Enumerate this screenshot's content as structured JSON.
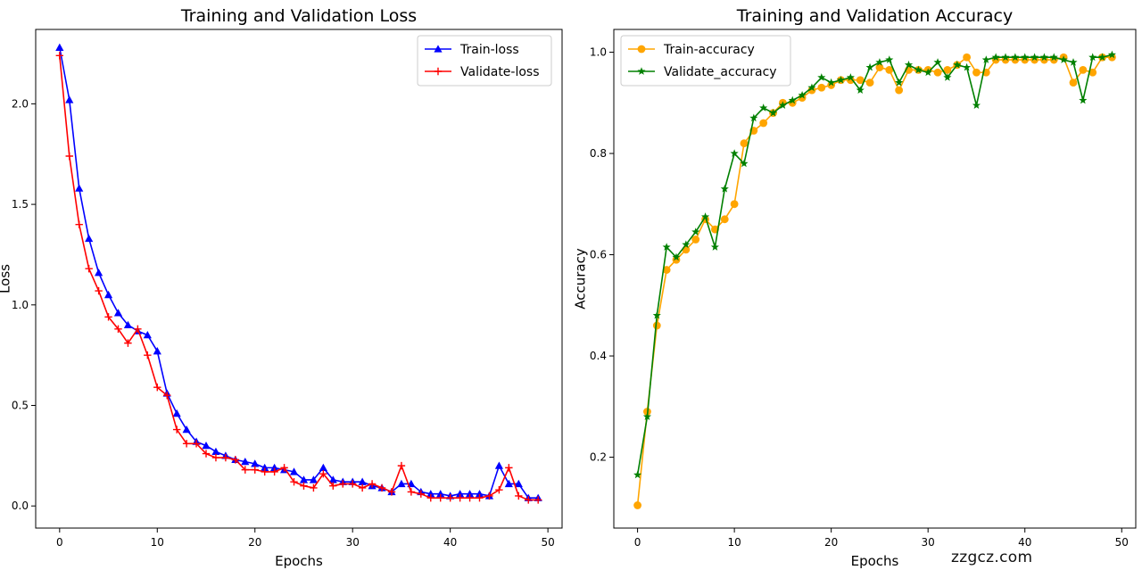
{
  "watermark": "zzgcz.com",
  "chart_data": [
    {
      "type": "line",
      "title": "Training and Validation Loss",
      "xlabel": "Epochs",
      "ylabel": "Loss",
      "xlim": [
        -2.45,
        51.45
      ],
      "ylim": [
        -0.11,
        2.37
      ],
      "xticks": [
        0,
        10,
        20,
        30,
        40,
        50
      ],
      "yticks": [
        0.0,
        0.5,
        1.0,
        1.5,
        2.0
      ],
      "ytick_labels": [
        "0.0",
        "0.5",
        "1.0",
        "1.5",
        "2.0"
      ],
      "legend_position": "upper-right",
      "grid": false,
      "series": [
        {
          "name": "Train-loss",
          "color": "#0000ff",
          "marker": "triangle",
          "x": [
            0,
            1,
            2,
            3,
            4,
            5,
            6,
            7,
            8,
            9,
            10,
            11,
            12,
            13,
            14,
            15,
            16,
            17,
            18,
            19,
            20,
            21,
            22,
            23,
            24,
            25,
            26,
            27,
            28,
            29,
            30,
            31,
            32,
            33,
            34,
            35,
            36,
            37,
            38,
            39,
            40,
            41,
            42,
            43,
            44,
            45,
            46,
            47,
            48,
            49
          ],
          "values": [
            2.28,
            2.02,
            1.58,
            1.33,
            1.16,
            1.05,
            0.96,
            0.9,
            0.87,
            0.85,
            0.77,
            0.56,
            0.46,
            0.38,
            0.32,
            0.3,
            0.27,
            0.25,
            0.23,
            0.22,
            0.21,
            0.19,
            0.19,
            0.18,
            0.17,
            0.13,
            0.13,
            0.19,
            0.13,
            0.12,
            0.12,
            0.12,
            0.1,
            0.09,
            0.07,
            0.11,
            0.11,
            0.07,
            0.06,
            0.06,
            0.05,
            0.06,
            0.06,
            0.06,
            0.05,
            0.2,
            0.11,
            0.11,
            0.04,
            0.04
          ]
        },
        {
          "name": "Validate-loss",
          "color": "#ff0000",
          "marker": "plus",
          "x": [
            0,
            1,
            2,
            3,
            4,
            5,
            6,
            7,
            8,
            9,
            10,
            11,
            12,
            13,
            14,
            15,
            16,
            17,
            18,
            19,
            20,
            21,
            22,
            23,
            24,
            25,
            26,
            27,
            28,
            29,
            30,
            31,
            32,
            33,
            34,
            35,
            36,
            37,
            38,
            39,
            40,
            41,
            42,
            43,
            44,
            45,
            46,
            47,
            48,
            49
          ],
          "values": [
            2.24,
            1.74,
            1.4,
            1.18,
            1.07,
            0.94,
            0.88,
            0.81,
            0.88,
            0.75,
            0.59,
            0.55,
            0.38,
            0.31,
            0.31,
            0.26,
            0.24,
            0.24,
            0.23,
            0.18,
            0.18,
            0.17,
            0.17,
            0.19,
            0.12,
            0.1,
            0.09,
            0.16,
            0.1,
            0.11,
            0.11,
            0.09,
            0.11,
            0.09,
            0.07,
            0.2,
            0.07,
            0.06,
            0.04,
            0.04,
            0.04,
            0.04,
            0.04,
            0.04,
            0.05,
            0.08,
            0.19,
            0.05,
            0.03,
            0.03
          ]
        }
      ]
    },
    {
      "type": "line",
      "title": "Training and Validation Accuracy",
      "xlabel": "Epochs",
      "ylabel": "Accuracy",
      "xlim": [
        -2.45,
        51.45
      ],
      "ylim": [
        0.06,
        1.045
      ],
      "xticks": [
        0,
        10,
        20,
        30,
        40,
        50
      ],
      "yticks": [
        0.2,
        0.4,
        0.6,
        0.8,
        1.0
      ],
      "ytick_labels": [
        "0.2",
        "0.4",
        "0.6",
        "0.8",
        "1.0"
      ],
      "legend_position": "upper-left",
      "grid": false,
      "series": [
        {
          "name": "Train-accuracy",
          "color": "#ffa500",
          "marker": "circle",
          "x": [
            0,
            1,
            2,
            3,
            4,
            5,
            6,
            7,
            8,
            9,
            10,
            11,
            12,
            13,
            14,
            15,
            16,
            17,
            18,
            19,
            20,
            21,
            22,
            23,
            24,
            25,
            26,
            27,
            28,
            29,
            30,
            31,
            32,
            33,
            34,
            35,
            36,
            37,
            38,
            39,
            40,
            41,
            42,
            43,
            44,
            45,
            46,
            47,
            48,
            49
          ],
          "values": [
            0.105,
            0.29,
            0.46,
            0.57,
            0.59,
            0.61,
            0.63,
            0.67,
            0.65,
            0.67,
            0.7,
            0.82,
            0.845,
            0.86,
            0.88,
            0.9,
            0.9,
            0.91,
            0.925,
            0.93,
            0.935,
            0.945,
            0.945,
            0.945,
            0.94,
            0.97,
            0.965,
            0.925,
            0.965,
            0.965,
            0.965,
            0.96,
            0.965,
            0.975,
            0.99,
            0.96,
            0.96,
            0.985,
            0.985,
            0.985,
            0.985,
            0.985,
            0.985,
            0.985,
            0.99,
            0.94,
            0.965,
            0.96,
            0.99,
            0.99
          ]
        },
        {
          "name": "Validate_accuracy",
          "color": "#008000",
          "marker": "star",
          "x": [
            0,
            1,
            2,
            3,
            4,
            5,
            6,
            7,
            8,
            9,
            10,
            11,
            12,
            13,
            14,
            15,
            16,
            17,
            18,
            19,
            20,
            21,
            22,
            23,
            24,
            25,
            26,
            27,
            28,
            29,
            30,
            31,
            32,
            33,
            34,
            35,
            36,
            37,
            38,
            39,
            40,
            41,
            42,
            43,
            44,
            45,
            46,
            47,
            48,
            49
          ],
          "values": [
            0.165,
            0.28,
            0.48,
            0.615,
            0.595,
            0.62,
            0.645,
            0.675,
            0.615,
            0.73,
            0.8,
            0.78,
            0.87,
            0.89,
            0.88,
            0.895,
            0.905,
            0.915,
            0.93,
            0.95,
            0.94,
            0.945,
            0.95,
            0.925,
            0.97,
            0.98,
            0.985,
            0.94,
            0.975,
            0.965,
            0.96,
            0.98,
            0.95,
            0.975,
            0.97,
            0.895,
            0.985,
            0.99,
            0.99,
            0.99,
            0.99,
            0.99,
            0.99,
            0.99,
            0.985,
            0.98,
            0.905,
            0.99,
            0.99,
            0.995
          ]
        }
      ]
    }
  ]
}
